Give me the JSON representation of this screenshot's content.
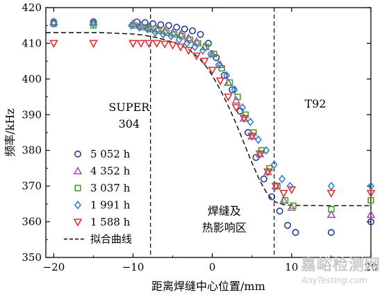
{
  "chart_data": {
    "type": "scatter",
    "xlabel": "距离焊缝中心位置/mm",
    "ylabel": "频率/kHz",
    "xlim": [
      -21,
      20
    ],
    "ylim": [
      350,
      420
    ],
    "x_ticks": [
      "−20",
      "−10",
      "0",
      "10",
      "20"
    ],
    "y_ticks": [
      "350",
      "360",
      "370",
      "380",
      "390",
      "400",
      "410",
      "420"
    ],
    "vlines": [
      -7.8,
      7.8
    ],
    "annotations": [
      {
        "lines": [
          "SUPER",
          "304"
        ],
        "x": -10.5,
        "y": 391
      },
      {
        "lines": [
          "T92"
        ],
        "x": 13,
        "y": 392
      },
      {
        "lines": [
          "焊缝及",
          "热影响区"
        ],
        "x": 1.5,
        "y": 362
      }
    ],
    "series": [
      {
        "name": "5 052 h",
        "marker": "circle",
        "color": "#1f3c99",
        "x": [
          -20,
          -15,
          -9.5,
          -8.5,
          -7.5,
          -6.5,
          -5.5,
          -4.5,
          -3.5,
          -2.5,
          -1.5,
          -0.5,
          0.5,
          1.5,
          2.5,
          3.5,
          4.5,
          5.5,
          6.5,
          7.5,
          8.5,
          9.5,
          10.5,
          15,
          20
        ],
        "y": [
          416,
          416,
          416,
          415.8,
          415.5,
          415.2,
          415,
          414.5,
          414,
          413.5,
          412.5,
          410,
          406,
          401,
          397,
          391,
          385,
          378,
          372,
          367,
          363,
          359,
          357,
          357,
          360
        ]
      },
      {
        "name": "4 352 h",
        "marker": "triangle-up",
        "color": "#a050b4",
        "x": [
          -20,
          -15,
          -10,
          -9,
          -8,
          -7,
          -6,
          -5,
          -4,
          -3,
          -2,
          -1,
          0,
          1,
          2,
          3,
          4,
          5,
          6,
          7,
          8,
          9,
          10,
          15,
          20
        ],
        "y": [
          416,
          416,
          415.5,
          415,
          414.5,
          414,
          413.5,
          413,
          412.5,
          411.5,
          410.5,
          409,
          407,
          404,
          399,
          394,
          389,
          384,
          379,
          374,
          370,
          366,
          364,
          362,
          362
        ]
      },
      {
        "name": "3 037 h",
        "marker": "square",
        "color": "#4f9a2c",
        "x": [
          -20,
          -15,
          -9.8,
          -8.8,
          -7.8,
          -6.8,
          -5.8,
          -4.8,
          -3.8,
          -2.8,
          -1.8,
          -0.8,
          0.2,
          1.2,
          2.2,
          3.2,
          4.2,
          5.2,
          6.2,
          7.2,
          8.2,
          9.2,
          10.2,
          15,
          20
        ],
        "y": [
          415.5,
          415,
          415,
          414.5,
          414,
          413.5,
          413,
          412.5,
          412,
          411,
          410,
          409,
          407,
          403,
          399,
          395,
          390,
          385,
          380,
          375,
          370,
          366,
          364.5,
          363.5,
          366
        ]
      },
      {
        "name": "1 991 h",
        "marker": "diamond",
        "color": "#2f80c8",
        "x": [
          -20,
          -15,
          -10.2,
          -9.2,
          -8.2,
          -7.2,
          -6.2,
          -5.2,
          -4.2,
          -3.2,
          -2.2,
          -1.2,
          -0.2,
          0.8,
          1.8,
          2.8,
          3.8,
          4.8,
          5.8,
          6.8,
          7.8,
          8.8,
          9.8,
          15,
          20
        ],
        "y": [
          415.5,
          415.5,
          415,
          414.5,
          414,
          413,
          412.5,
          412,
          411,
          410,
          409,
          408,
          407,
          404,
          401,
          397,
          392,
          388,
          383,
          380,
          376,
          372,
          370,
          370,
          370
        ]
      },
      {
        "name": "1 588 h",
        "marker": "triangle-down",
        "color": "#e03030",
        "x": [
          -20,
          -15,
          -10,
          -9,
          -8,
          -7,
          -6,
          -5,
          -4,
          -3,
          -2,
          -1,
          0,
          1,
          2,
          3,
          4,
          5,
          6,
          7,
          8,
          9,
          10,
          15,
          20
        ],
        "y": [
          410,
          410,
          410,
          410,
          410,
          410,
          409.8,
          409.5,
          409,
          408,
          406.5,
          405,
          402.5,
          399.5,
          395,
          392,
          389,
          384,
          379,
          374,
          370,
          368,
          369,
          368,
          368
        ]
      }
    ],
    "fit_line": {
      "name": "拟合曲线",
      "style": "dashed",
      "color": "#000000",
      "x": [
        -21,
        -14,
        -10,
        -9,
        -8,
        -7,
        -6,
        -5,
        -4,
        -3,
        -2,
        -1,
        0,
        1,
        2,
        3,
        4,
        5,
        6,
        7,
        8,
        9,
        10,
        14,
        20
      ],
      "y": [
        413,
        413,
        412.6,
        412.4,
        412,
        411.6,
        411,
        410.3,
        409.5,
        408.3,
        406.5,
        404.2,
        401,
        397,
        392.5,
        387.5,
        382,
        376.5,
        371.5,
        367.5,
        365.5,
        364.8,
        364.6,
        364.5,
        364.5
      ]
    }
  },
  "watermark": {
    "line1": "嘉峪检测网",
    "line2": "AnyTesting.com"
  }
}
